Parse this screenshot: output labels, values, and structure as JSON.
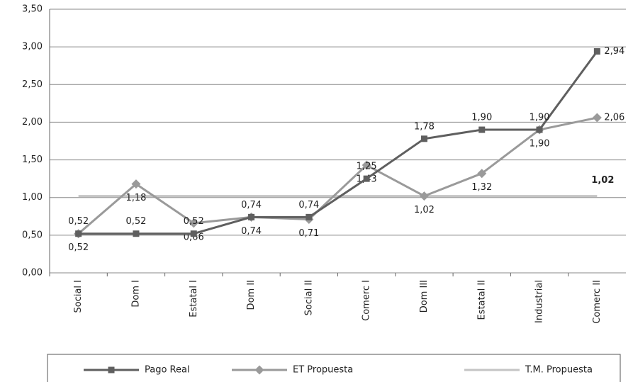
{
  "chart_data": {
    "type": "line",
    "categories": [
      "Social I",
      "Dom I",
      "Estatal I",
      "Dom II",
      "Social II",
      "Comerc I",
      "Dom III",
      "Estatal II",
      "Industrial",
      "Comerc II"
    ],
    "series": [
      {
        "name": "Pago Real",
        "color": "#5f5f5f",
        "marker": "square",
        "values": [
          0.52,
          0.52,
          0.52,
          0.74,
          0.74,
          1.25,
          1.78,
          1.9,
          1.9,
          2.94
        ],
        "value_labels": [
          "0,52",
          "0,52",
          "0,52",
          "0,74",
          "0,74",
          "1,25",
          "1,78",
          "1,90",
          "1,90",
          "2,94"
        ]
      },
      {
        "name": "ET Propuesta",
        "color": "#9a9a9a",
        "marker": "diamond",
        "values": [
          0.52,
          1.18,
          0.66,
          0.74,
          0.71,
          1.43,
          1.02,
          1.32,
          1.9,
          2.06
        ],
        "value_labels": [
          "0,52",
          "1,18",
          "0,66",
          "0,74",
          "0,71",
          "1,43",
          "1,02",
          "1,32",
          "1,90",
          "2,06"
        ]
      },
      {
        "name": "T.M. Propuesta",
        "color": "#c4c4c4",
        "marker": "none",
        "values": [
          1.02,
          1.02,
          1.02,
          1.02,
          1.02,
          1.02,
          1.02,
          1.02,
          1.02,
          1.02
        ],
        "value_labels": [
          null,
          null,
          null,
          null,
          null,
          null,
          null,
          null,
          null,
          "1,02"
        ]
      }
    ],
    "ylim": [
      0,
      3.5
    ],
    "yticks": [
      {
        "value": 0,
        "label": "0,00"
      },
      {
        "value": 0.5,
        "label": "0,50"
      },
      {
        "value": 1,
        "label": "1,00"
      },
      {
        "value": 1.5,
        "label": "1,50"
      },
      {
        "value": 2,
        "label": "2,00"
      },
      {
        "value": 2.5,
        "label": "2,50"
      },
      {
        "value": 3,
        "label": "3,00"
      },
      {
        "value": 3.5,
        "label": "3,50"
      }
    ],
    "grid": true,
    "legend": "bottom"
  }
}
